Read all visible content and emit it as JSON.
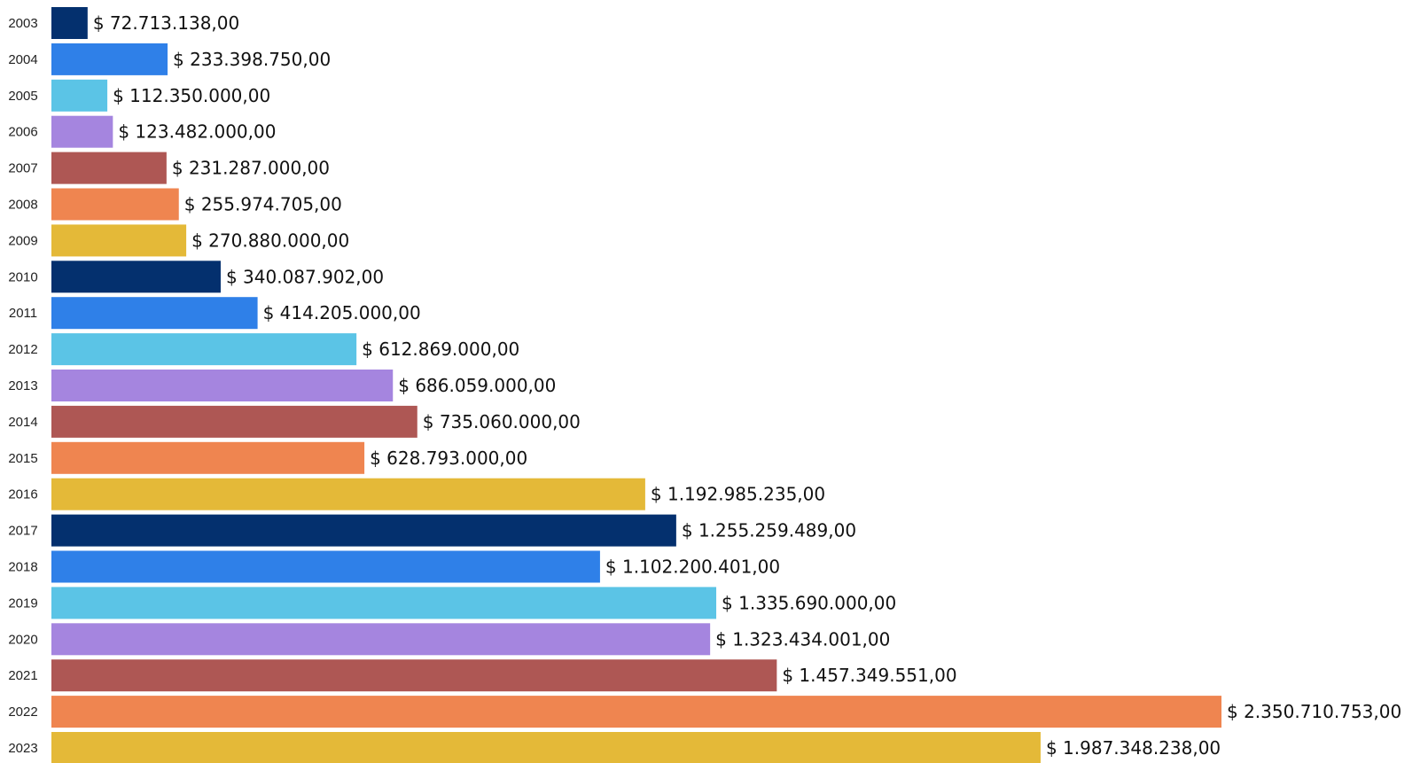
{
  "chart_data": {
    "type": "bar",
    "orientation": "horizontal",
    "title": "",
    "xlabel": "",
    "ylabel": "",
    "grid": false,
    "legend": "none",
    "xlim": [
      0,
      2350710753
    ],
    "categories": [
      "2003",
      "2004",
      "2005",
      "2006",
      "2007",
      "2008",
      "2009",
      "2010",
      "2011",
      "2012",
      "2013",
      "2014",
      "2015",
      "2016",
      "2017",
      "2018",
      "2019",
      "2020",
      "2021",
      "2022",
      "2023"
    ],
    "values": [
      72713138,
      233398750,
      112350000,
      123482000,
      231287000,
      255974705,
      270880000,
      340087902,
      414205000,
      612869000,
      686059000,
      735060000,
      628793000,
      1192985235,
      1255259489,
      1102200401,
      1335690000,
      1323434001,
      1457349551,
      2350710753,
      1987348238
    ],
    "data_labels": [
      "$ 72.713.138,00",
      "$ 233.398.750,00",
      "$ 112.350.000,00",
      "$ 123.482.000,00",
      "$ 231.287.000,00",
      "$ 255.974.705,00",
      "$ 270.880.000,00",
      "$ 340.087.902,00",
      "$ 414.205.000,00",
      "$ 612.869.000,00",
      "$ 686.059.000,00",
      "$ 735.060.000,00",
      "$ 628.793.000,00",
      "$ 1.192.985.235,00",
      "$ 1.255.259.489,00",
      "$ 1.102.200.401,00",
      "$ 1.335.690.000,00",
      "$ 1.323.434.001,00",
      "$ 1.457.349.551,00",
      "$ 2.350.710.753,00",
      "$ 1.987.348.238,00"
    ],
    "color_cycle": [
      "#04306e",
      "#2f80e8",
      "#5bc4e6",
      "#a585df",
      "#ae5754",
      "#ef8550",
      "#e4b938"
    ]
  }
}
